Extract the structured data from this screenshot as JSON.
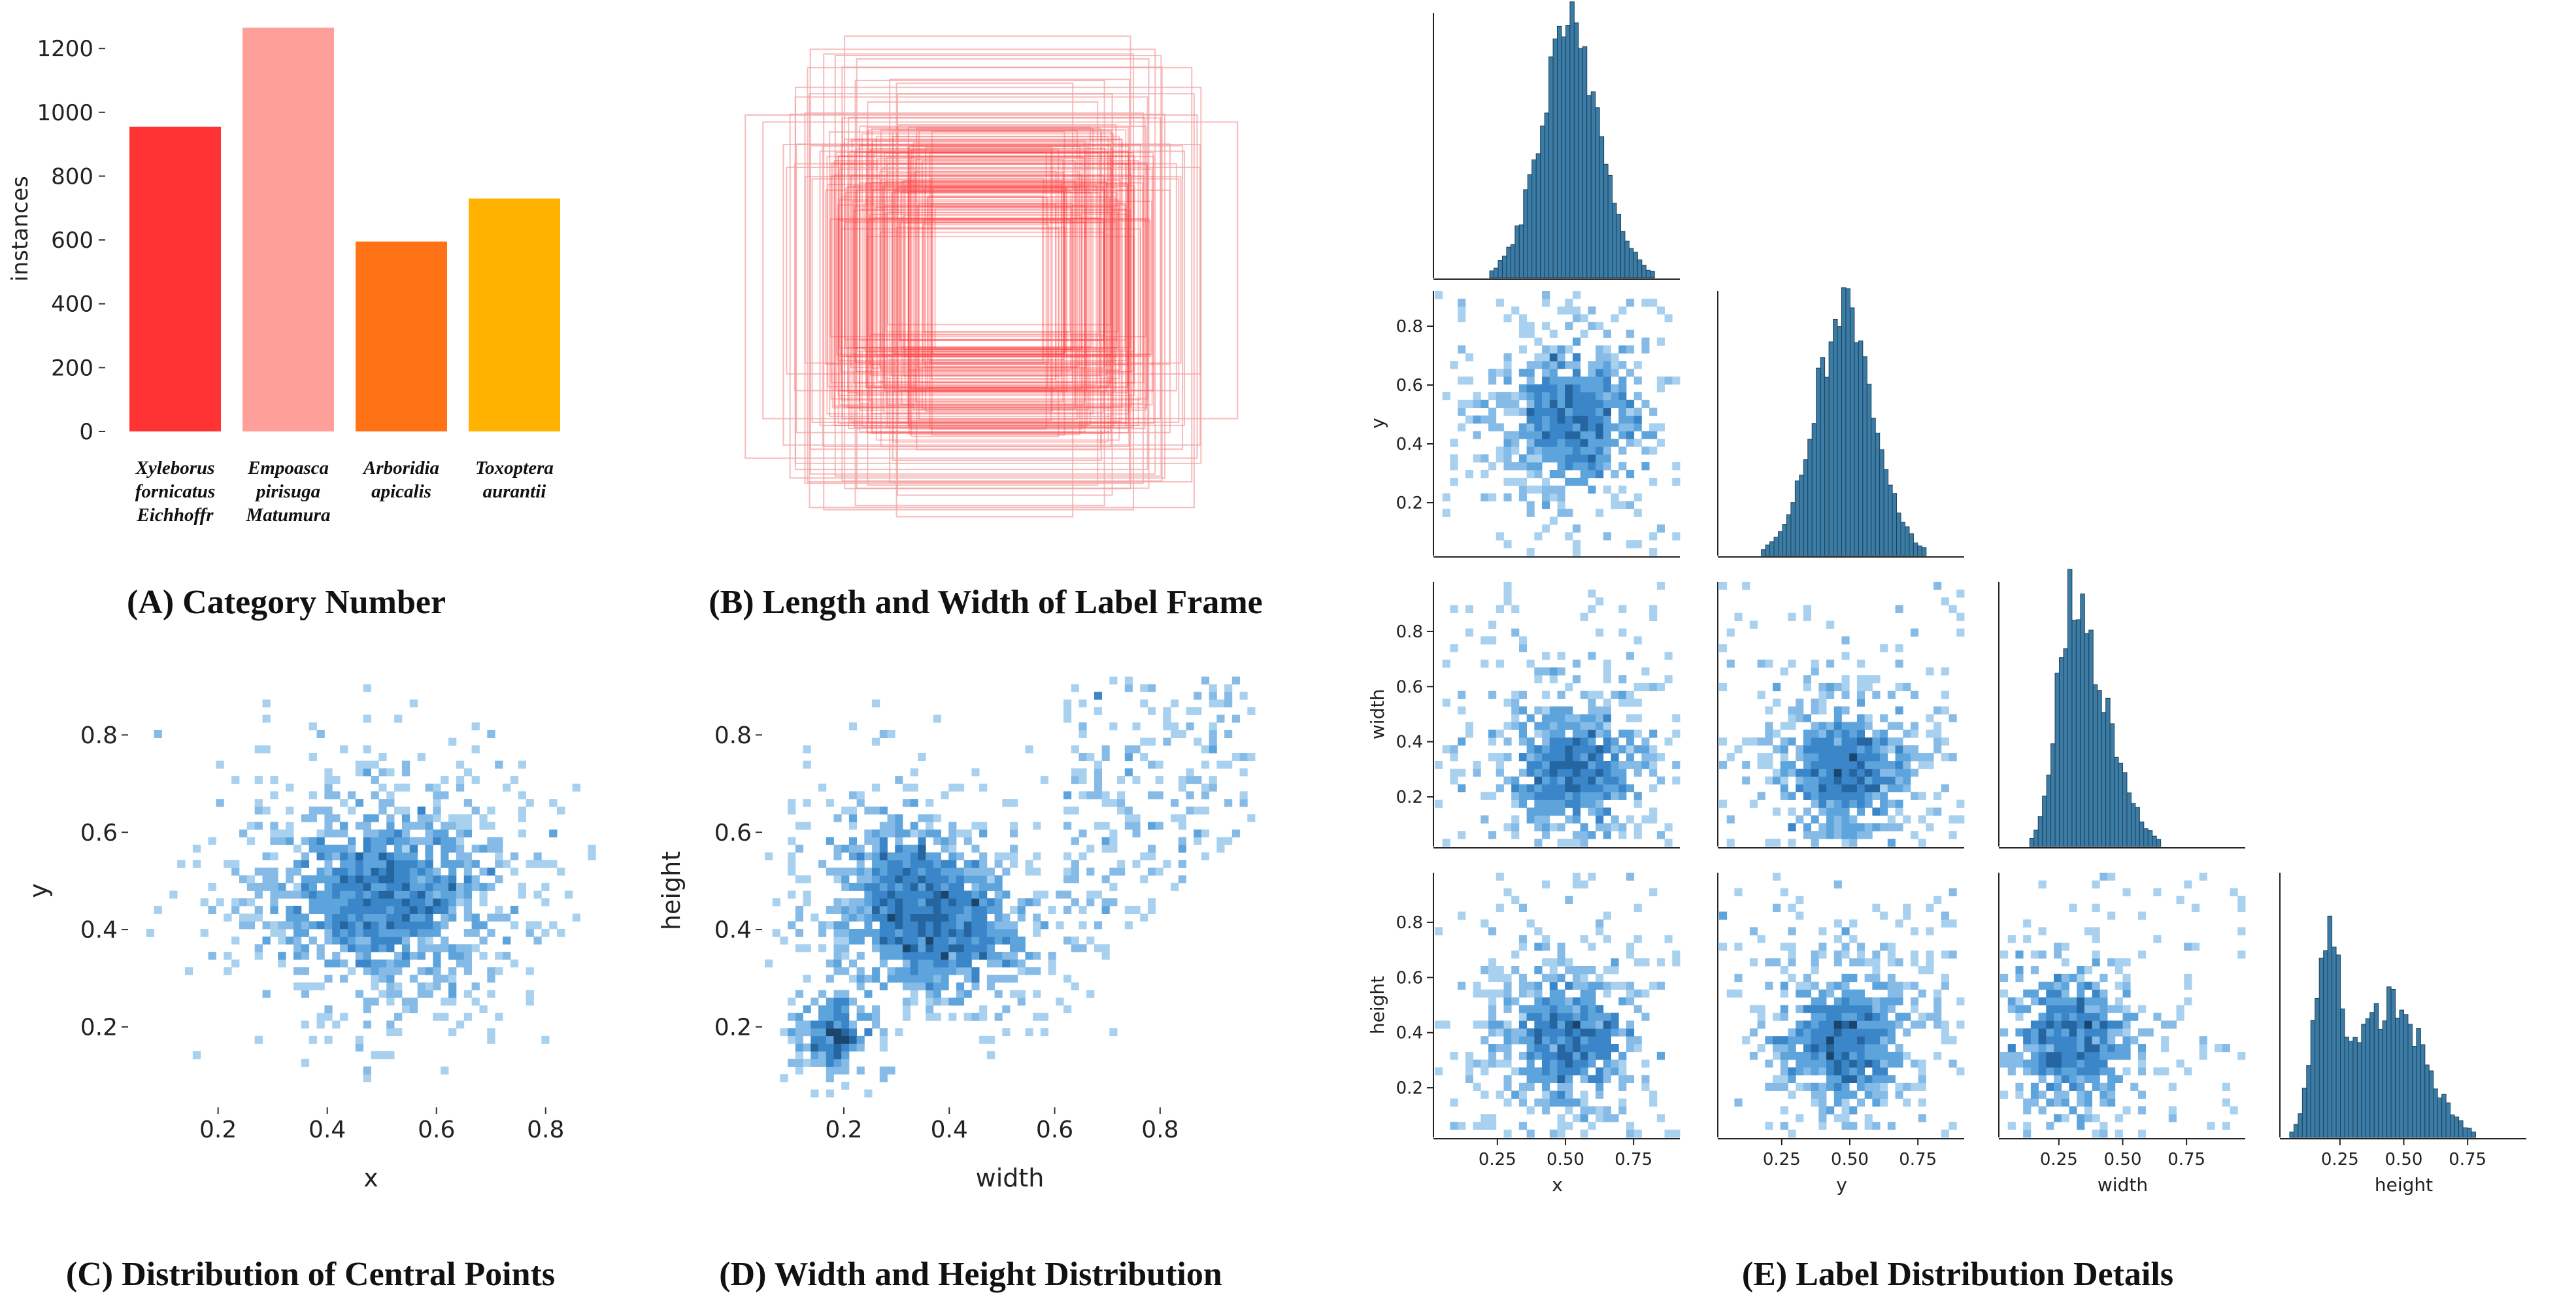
{
  "panel_captions": {
    "a": "(A) Category Number",
    "b": "(B) Length and Width of Label Frame",
    "c": "(C) Distribution of Central Points",
    "d": "(D) Width and Height Distribution",
    "e": "(E) Label Distribution Details"
  },
  "chart_data": [
    {
      "id": "A",
      "type": "bar",
      "title": "(A) Category Number",
      "ylabel": "instances",
      "xlabel": "",
      "ylim": [
        0,
        1270
      ],
      "yticks": [
        0,
        200,
        400,
        600,
        800,
        1000,
        1200
      ],
      "categories": [
        [
          "Xyleborus",
          "fornicatus",
          "Eichhoffr"
        ],
        [
          "Empoasca",
          "pirisuga",
          "Matumura"
        ],
        [
          "Arboridia",
          "apicalis"
        ],
        [
          "Toxoptera",
          "aurantii"
        ]
      ],
      "values": [
        955,
        1265,
        595,
        730
      ],
      "colors": [
        "#ff3333",
        "#ff9f99",
        "#ff7316",
        "#ffb300"
      ]
    },
    {
      "id": "B",
      "type": "box-overlay",
      "title": "(B) Length and Width of Label Frame",
      "description_color": "#ff3b3b"
    },
    {
      "id": "C",
      "type": "heatmap",
      "title": "(C) Distribution of Central Points",
      "xlabel": "x",
      "ylabel": "y",
      "xlim": [
        0.04,
        0.92
      ],
      "ylim": [
        0.04,
        0.92
      ],
      "xticks": [
        0.2,
        0.4,
        0.6,
        0.8
      ],
      "yticks": [
        0.2,
        0.4,
        0.6,
        0.8
      ],
      "center": [
        0.5,
        0.47
      ],
      "spread": [
        0.15,
        0.14
      ],
      "extent_x": [
        0.06,
        0.9
      ],
      "extent_y": [
        0.06,
        0.9
      ]
    },
    {
      "id": "D",
      "type": "heatmap",
      "title": "(D) Width and Height Distribution",
      "xlabel": "width",
      "ylabel": "height",
      "xlim": [
        0.05,
        0.98
      ],
      "ylim": [
        0.04,
        0.92
      ],
      "xticks": [
        0.2,
        0.4,
        0.6,
        0.8
      ],
      "yticks": [
        0.2,
        0.4,
        0.6,
        0.8
      ],
      "clusters": [
        {
          "cx": 0.18,
          "cy": 0.18,
          "sx": 0.05,
          "sy": 0.05
        },
        {
          "cx": 0.3,
          "cy": 0.5,
          "sx": 0.1,
          "sy": 0.12
        },
        {
          "cx": 0.42,
          "cy": 0.38,
          "sx": 0.11,
          "sy": 0.1
        }
      ]
    },
    {
      "id": "E",
      "type": "pairplot",
      "title": "(E) Label Distribution Details",
      "variables": [
        "x",
        "y",
        "width",
        "height"
      ],
      "ranges": [
        [
          0.02,
          0.92
        ],
        [
          0.02,
          0.92
        ],
        [
          0.02,
          0.98
        ],
        [
          0.02,
          0.98
        ]
      ],
      "diag_ticks": [
        0.25,
        0.5,
        0.75
      ],
      "diag_tick_labels": [
        "0.25",
        "0.50",
        "0.75"
      ],
      "offdiag_yticks": [
        0.2,
        0.4,
        0.6,
        0.8
      ],
      "histogram_centers": [
        0.52,
        0.48,
        0.3,
        0.38
      ],
      "histogram_color": "#3a7ca5"
    }
  ]
}
